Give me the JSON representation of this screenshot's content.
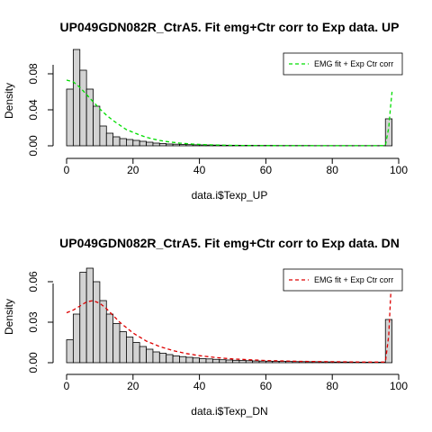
{
  "chart_data": [
    {
      "type": "bar",
      "title": "UP049GDN082R_CtrA5. Fit emg+Ctr corr to Exp data. UP",
      "xlabel": "data.i$Texp_UP",
      "ylabel": "Density",
      "xlim": [
        0,
        100
      ],
      "ylim": [
        0,
        0.1
      ],
      "xticks": [
        "0",
        "20",
        "40",
        "60",
        "80",
        "100"
      ],
      "yticks": [
        "0.00",
        "0.04",
        "0.08"
      ],
      "bin_width": 2,
      "bins": [
        {
          "x0": 0,
          "y": 0.063
        },
        {
          "x0": 2,
          "y": 0.107
        },
        {
          "x0": 4,
          "y": 0.084
        },
        {
          "x0": 6,
          "y": 0.063
        },
        {
          "x0": 8,
          "y": 0.044
        },
        {
          "x0": 10,
          "y": 0.022
        },
        {
          "x0": 12,
          "y": 0.014
        },
        {
          "x0": 14,
          "y": 0.01
        },
        {
          "x0": 16,
          "y": 0.008
        },
        {
          "x0": 18,
          "y": 0.007
        },
        {
          "x0": 20,
          "y": 0.006
        },
        {
          "x0": 22,
          "y": 0.005
        },
        {
          "x0": 24,
          "y": 0.004
        },
        {
          "x0": 26,
          "y": 0.003
        },
        {
          "x0": 28,
          "y": 0.0025
        },
        {
          "x0": 30,
          "y": 0.002
        },
        {
          "x0": 32,
          "y": 0.0018
        },
        {
          "x0": 34,
          "y": 0.0015
        },
        {
          "x0": 36,
          "y": 0.0013
        },
        {
          "x0": 38,
          "y": 0.0011
        },
        {
          "x0": 40,
          "y": 0.001
        },
        {
          "x0": 42,
          "y": 0.0009
        },
        {
          "x0": 44,
          "y": 0.0008
        },
        {
          "x0": 46,
          "y": 0.0007
        },
        {
          "x0": 48,
          "y": 0.0006
        },
        {
          "x0": 50,
          "y": 0.0006
        },
        {
          "x0": 52,
          "y": 0.0005
        },
        {
          "x0": 54,
          "y": 0.0005
        },
        {
          "x0": 56,
          "y": 0.0004
        },
        {
          "x0": 58,
          "y": 0.0004
        },
        {
          "x0": 60,
          "y": 0.0004
        },
        {
          "x0": 62,
          "y": 0.0003
        },
        {
          "x0": 64,
          "y": 0.0003
        },
        {
          "x0": 66,
          "y": 0.0003
        },
        {
          "x0": 68,
          "y": 0.0003
        },
        {
          "x0": 70,
          "y": 0.0003
        },
        {
          "x0": 72,
          "y": 0.0003
        },
        {
          "x0": 74,
          "y": 0.0002
        },
        {
          "x0": 76,
          "y": 0.0002
        },
        {
          "x0": 78,
          "y": 0.0002
        },
        {
          "x0": 80,
          "y": 0.0002
        },
        {
          "x0": 82,
          "y": 0.0002
        },
        {
          "x0": 84,
          "y": 0.0002
        },
        {
          "x0": 86,
          "y": 0.0002
        },
        {
          "x0": 88,
          "y": 0.0002
        },
        {
          "x0": 90,
          "y": 0.0002
        },
        {
          "x0": 92,
          "y": 0.0002
        },
        {
          "x0": 94,
          "y": 0.0002
        },
        {
          "x0": 96,
          "y": 0.03
        }
      ],
      "fit": {
        "name": "EMG fit + Exp Ctr corr",
        "color": "#00dd00",
        "points": [
          [
            0,
            0.073
          ],
          [
            2,
            0.071
          ],
          [
            4,
            0.065
          ],
          [
            6,
            0.057
          ],
          [
            8,
            0.049
          ],
          [
            10,
            0.041
          ],
          [
            12,
            0.034
          ],
          [
            14,
            0.028
          ],
          [
            16,
            0.023
          ],
          [
            18,
            0.018
          ],
          [
            20,
            0.015
          ],
          [
            22,
            0.012
          ],
          [
            24,
            0.0095
          ],
          [
            26,
            0.0076
          ],
          [
            28,
            0.006
          ],
          [
            30,
            0.0048
          ],
          [
            34,
            0.003
          ],
          [
            38,
            0.0019
          ],
          [
            42,
            0.0012
          ],
          [
            46,
            0.0008
          ],
          [
            50,
            0.0005
          ],
          [
            55,
            0.0003
          ],
          [
            60,
            0.0002
          ],
          [
            70,
            0.0001
          ],
          [
            80,
            0.0001
          ],
          [
            90,
            0.0001
          ],
          [
            96,
            0.0002
          ],
          [
            97,
            0.02
          ],
          [
            97.6,
            0.045
          ],
          [
            98,
            0.06
          ]
        ]
      },
      "legend": "top-right"
    },
    {
      "type": "bar",
      "title": "UP049GDN082R_CtrA5. Fit emg+Ctr corr to Exp data. DN",
      "xlabel": "data.i$Texp_DN",
      "ylabel": "Density",
      "xlim": [
        0,
        100
      ],
      "ylim": [
        0,
        0.07
      ],
      "xticks": [
        "0",
        "20",
        "40",
        "60",
        "80",
        "100"
      ],
      "yticks": [
        "0.00",
        "0.03",
        "0.06"
      ],
      "bin_width": 2,
      "bins": [
        {
          "x0": 0,
          "y": 0.017
        },
        {
          "x0": 2,
          "y": 0.036
        },
        {
          "x0": 4,
          "y": 0.067
        },
        {
          "x0": 6,
          "y": 0.07
        },
        {
          "x0": 8,
          "y": 0.06
        },
        {
          "x0": 10,
          "y": 0.046
        },
        {
          "x0": 12,
          "y": 0.036
        },
        {
          "x0": 14,
          "y": 0.029
        },
        {
          "x0": 16,
          "y": 0.023
        },
        {
          "x0": 18,
          "y": 0.019
        },
        {
          "x0": 20,
          "y": 0.015
        },
        {
          "x0": 22,
          "y": 0.012
        },
        {
          "x0": 24,
          "y": 0.01
        },
        {
          "x0": 26,
          "y": 0.008
        },
        {
          "x0": 28,
          "y": 0.007
        },
        {
          "x0": 30,
          "y": 0.006
        },
        {
          "x0": 32,
          "y": 0.005
        },
        {
          "x0": 34,
          "y": 0.0045
        },
        {
          "x0": 36,
          "y": 0.004
        },
        {
          "x0": 38,
          "y": 0.0035
        },
        {
          "x0": 40,
          "y": 0.003
        },
        {
          "x0": 42,
          "y": 0.0028
        },
        {
          "x0": 44,
          "y": 0.0025
        },
        {
          "x0": 46,
          "y": 0.0022
        },
        {
          "x0": 48,
          "y": 0.002
        },
        {
          "x0": 50,
          "y": 0.0018
        },
        {
          "x0": 52,
          "y": 0.0016
        },
        {
          "x0": 54,
          "y": 0.0015
        },
        {
          "x0": 56,
          "y": 0.0013
        },
        {
          "x0": 58,
          "y": 0.0012
        },
        {
          "x0": 60,
          "y": 0.0011
        },
        {
          "x0": 62,
          "y": 0.001
        },
        {
          "x0": 64,
          "y": 0.001
        },
        {
          "x0": 66,
          "y": 0.0009
        },
        {
          "x0": 68,
          "y": 0.0008
        },
        {
          "x0": 70,
          "y": 0.0008
        },
        {
          "x0": 72,
          "y": 0.0007
        },
        {
          "x0": 74,
          "y": 0.0007
        },
        {
          "x0": 76,
          "y": 0.0006
        },
        {
          "x0": 78,
          "y": 0.0006
        },
        {
          "x0": 80,
          "y": 0.0005
        },
        {
          "x0": 82,
          "y": 0.0005
        },
        {
          "x0": 84,
          "y": 0.0005
        },
        {
          "x0": 86,
          "y": 0.0004
        },
        {
          "x0": 88,
          "y": 0.0004
        },
        {
          "x0": 90,
          "y": 0.0004
        },
        {
          "x0": 92,
          "y": 0.0004
        },
        {
          "x0": 94,
          "y": 0.0004
        },
        {
          "x0": 96,
          "y": 0.032
        }
      ],
      "fit": {
        "name": "EMG fit + Exp Ctr corr",
        "color": "#dd0000",
        "points": [
          [
            0,
            0.037
          ],
          [
            2,
            0.039
          ],
          [
            4,
            0.042
          ],
          [
            6,
            0.045
          ],
          [
            8,
            0.046
          ],
          [
            10,
            0.044
          ],
          [
            12,
            0.04
          ],
          [
            14,
            0.035
          ],
          [
            16,
            0.03
          ],
          [
            18,
            0.026
          ],
          [
            20,
            0.022
          ],
          [
            24,
            0.016
          ],
          [
            28,
            0.012
          ],
          [
            32,
            0.009
          ],
          [
            36,
            0.0068
          ],
          [
            40,
            0.0052
          ],
          [
            45,
            0.0038
          ],
          [
            50,
            0.0028
          ],
          [
            60,
            0.0016
          ],
          [
            70,
            0.001
          ],
          [
            80,
            0.0007
          ],
          [
            90,
            0.0005
          ],
          [
            96,
            0.0005
          ],
          [
            97,
            0.02
          ],
          [
            97.6,
            0.05
          ],
          [
            98,
            0.06
          ]
        ]
      },
      "legend": "top-right"
    }
  ]
}
